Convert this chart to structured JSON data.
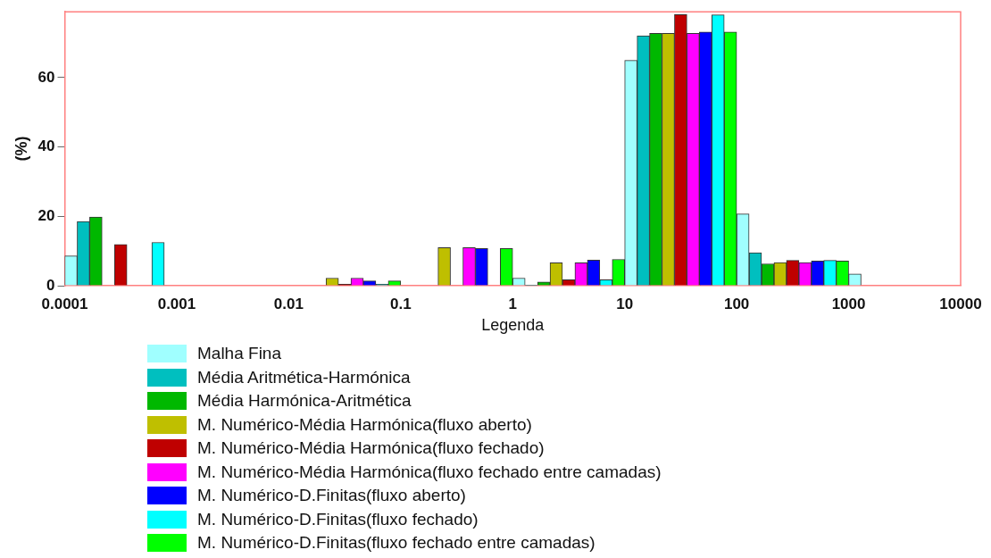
{
  "chart_data": {
    "type": "histogram",
    "xlabel": "Legenda",
    "ylabel": "(%)",
    "log": "x",
    "bins": [
      0.0001,
      0.001,
      0.01,
      0.1,
      1,
      10,
      100,
      1000,
      10000
    ],
    "xlim": [
      0.0001,
      10000
    ],
    "xticks": [
      0.0001,
      0.001,
      0.01,
      0.1,
      1,
      10,
      100,
      1000,
      10000
    ],
    "ylim": [
      0,
      79
    ],
    "yticks": [
      0,
      20,
      40,
      60
    ],
    "grid": false,
    "legend": "bottom",
    "series": [
      {
        "name": "Malha Fina",
        "color": "#a0ffff",
        "values": [
          8.6,
          0,
          0,
          0,
          2.2,
          65.0,
          20.7,
          3.4
        ]
      },
      {
        "name": "Média Aritmética-Harmónica",
        "color": "#00bfbf",
        "values": [
          18.5,
          0,
          0,
          0,
          0.2,
          72.1,
          9.5,
          0
        ]
      },
      {
        "name": "Média Harmónica-Aritmética",
        "color": "#00b800",
        "values": [
          19.8,
          0,
          0,
          0,
          1.1,
          72.8,
          6.3,
          0
        ]
      },
      {
        "name": "M. Numérico-Média Harmónica(fluxo aberto)",
        "color": "#bfbf00",
        "values": [
          0,
          0,
          2.2,
          11.0,
          6.6,
          72.8,
          6.7,
          0
        ]
      },
      {
        "name": "M. Numérico-Média Harmónica(fluxo fechado)",
        "color": "#bf0000",
        "values": [
          11.9,
          0,
          0.4,
          0,
          1.7,
          78.2,
          7.3,
          0
        ]
      },
      {
        "name": "M. Numérico-Média Harmónica(fluxo fechado entre camadas)",
        "color": "#ff00ff",
        "values": [
          0,
          0,
          2.2,
          11.0,
          6.6,
          72.8,
          6.7,
          0
        ]
      },
      {
        "name": "M. Numérico-D.Finitas(fluxo aberto)",
        "color": "#0000ff",
        "values": [
          0,
          0,
          1.4,
          10.7,
          7.4,
          73.2,
          7.1,
          0
        ]
      },
      {
        "name": "M. Numérico-D.Finitas(fluxo fechado)",
        "color": "#00ffff",
        "values": [
          12.5,
          0,
          0.4,
          0,
          1.7,
          78.1,
          7.3,
          0
        ]
      },
      {
        "name": "M. Numérico-D.Finitas(fluxo fechado entre camadas)",
        "color": "#00ff00",
        "values": [
          0,
          0,
          1.4,
          10.7,
          7.6,
          73.2,
          7.1,
          0
        ]
      }
    ]
  }
}
